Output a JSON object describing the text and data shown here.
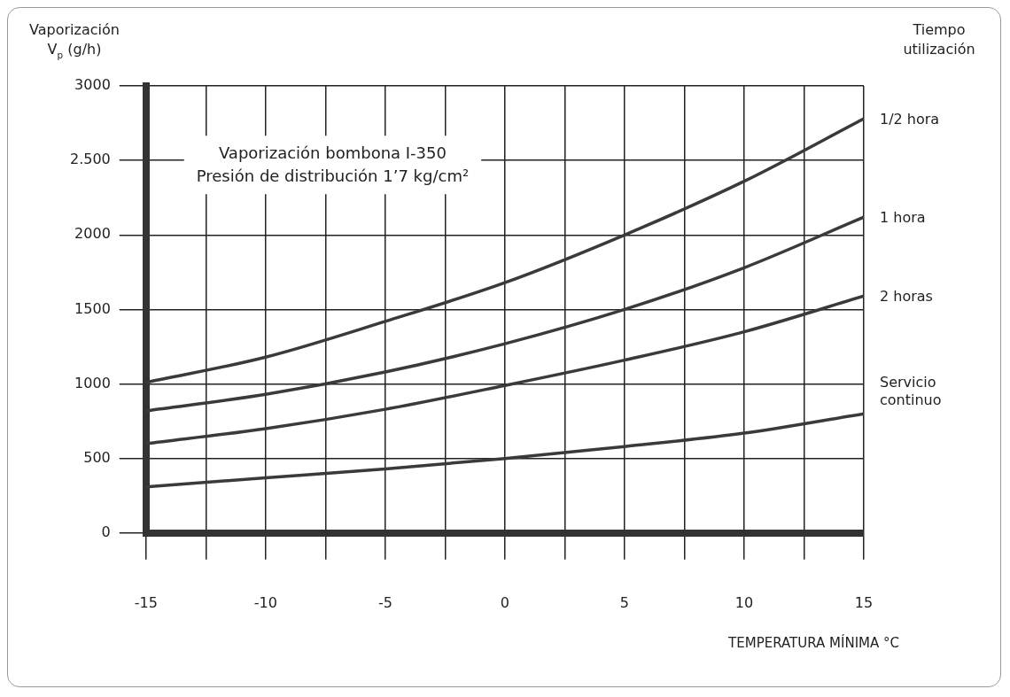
{
  "chart_data": {
    "type": "line",
    "xlabel": "TEMPERATURA MÍNIMA °C",
    "ylabel": "Vaporización\nV$_{p}$ (g/h)",
    "legend_title": "Tiempo\nutilización",
    "annotations": [
      "Vaporización bombona I-350",
      "Presión de distribución 1’7 kg/cm²"
    ],
    "x": [
      -15,
      -10,
      -5,
      0,
      5,
      10,
      15
    ],
    "series": [
      {
        "name": "1/2 hora",
        "color": "#3a3a3a",
        "values": [
          1010,
          1180,
          1420,
          1680,
          2000,
          2360,
          2780
        ]
      },
      {
        "name": "1 hora",
        "color": "#3a3a3a",
        "values": [
          820,
          930,
          1080,
          1270,
          1500,
          1780,
          2120
        ]
      },
      {
        "name": "2 horas",
        "color": "#3a3a3a",
        "values": [
          600,
          700,
          830,
          990,
          1160,
          1350,
          1590
        ]
      },
      {
        "name": "Servicio\ncontinuo",
        "color": "#3a3a3a",
        "values": [
          310,
          370,
          430,
          500,
          580,
          670,
          800
        ]
      }
    ],
    "xlim": [
      -15,
      15
    ],
    "xticks": [
      -15,
      {
        "value": -12.5,
        "label": null
      },
      -10,
      {
        "value": -7.5,
        "label": null
      },
      -5,
      {
        "value": -2.5,
        "label": null
      },
      0,
      {
        "value": 2.5,
        "label": null
      },
      5,
      {
        "value": 7.5,
        "label": null
      },
      10,
      {
        "value": 12.5,
        "label": null
      },
      15
    ],
    "ylim": [
      0,
      3000
    ],
    "yticks": [
      0,
      500,
      1000,
      1500,
      2000,
      {
        "value": 2500,
        "label": "2.500"
      },
      3000
    ],
    "grid": true,
    "legend": false,
    "marker": "none",
    "line_style": "solid"
  }
}
